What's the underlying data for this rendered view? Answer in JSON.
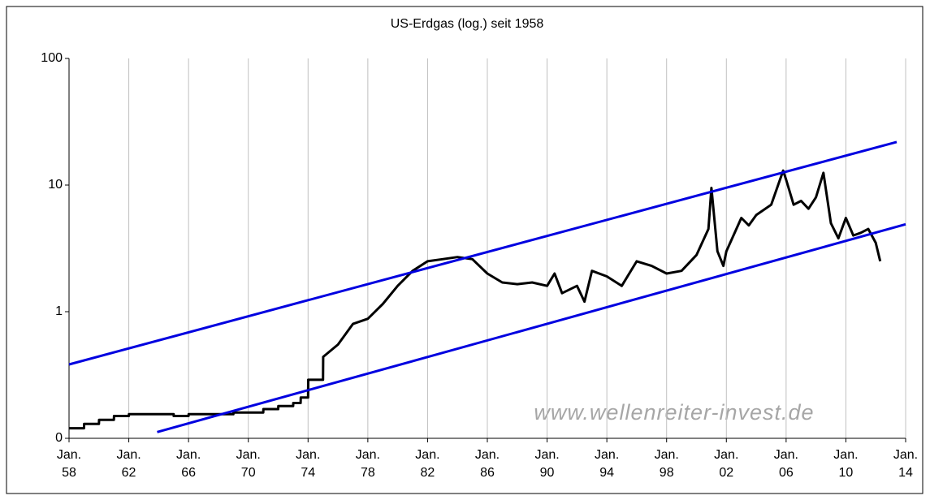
{
  "chart_data": {
    "type": "line",
    "title": "US-Erdgas (log.) seit 1958",
    "annotations": [
      "www.wellenreiter-invest.de"
    ],
    "yscale": "log",
    "grid": "x",
    "xlim": [
      1958,
      2014
    ],
    "xticks": [
      {
        "value": 1958,
        "label": "Jan. 58"
      },
      {
        "value": 1962,
        "label": "Jan. 62"
      },
      {
        "value": 1966,
        "label": "Jan. 66"
      },
      {
        "value": 1970,
        "label": "Jan. 70"
      },
      {
        "value": 1974,
        "label": "Jan. 74"
      },
      {
        "value": 1978,
        "label": "Jan. 78"
      },
      {
        "value": 1982,
        "label": "Jan. 82"
      },
      {
        "value": 1986,
        "label": "Jan. 86"
      },
      {
        "value": 1990,
        "label": "Jan. 90"
      },
      {
        "value": 1994,
        "label": "Jan. 94"
      },
      {
        "value": 1998,
        "label": "Jan. 98"
      },
      {
        "value": 2002,
        "label": "Jan. 02"
      },
      {
        "value": 2006,
        "label": "Jan. 06"
      },
      {
        "value": 2010,
        "label": "Jan. 10"
      },
      {
        "value": 2014,
        "label": "Jan. 14"
      }
    ],
    "ylim": [
      0.1,
      100
    ],
    "yticks": [
      {
        "value": 0.1,
        "label": "0"
      },
      1,
      10,
      100
    ],
    "series": [
      {
        "color": "#000000",
        "x": [
          1958,
          1959,
          1959.01,
          1960,
          1960.01,
          1961,
          1961.01,
          1962,
          1962.01,
          1965,
          1965.01,
          1966,
          1966.01,
          1969,
          1969.01,
          1971,
          1971.01,
          1972,
          1972.01,
          1973,
          1973.01,
          1973.5,
          1973.51,
          1974,
          1974.01,
          1975,
          1975.01,
          1976,
          1977,
          1978,
          1979,
          1980,
          1981,
          1982,
          1983,
          1984,
          1985,
          1986,
          1987,
          1988,
          1989,
          1990,
          1990.5,
          1991,
          1992,
          1992.5,
          1993,
          1994,
          1995,
          1996,
          1997,
          1998,
          1999,
          2000,
          2000.8,
          2001,
          2001.4,
          2001.8,
          2002,
          2003,
          2003.5,
          2004,
          2005,
          2005.8,
          2006,
          2006.5,
          2007,
          2007.5,
          2008,
          2008.5,
          2009,
          2009.5,
          2010,
          2010.5,
          2011,
          2011.5,
          2012,
          2012.3
        ],
        "values": [
          0.12,
          0.12,
          0.13,
          0.13,
          0.14,
          0.14,
          0.15,
          0.15,
          0.155,
          0.155,
          0.15,
          0.15,
          0.155,
          0.155,
          0.16,
          0.16,
          0.17,
          0.17,
          0.18,
          0.18,
          0.19,
          0.19,
          0.21,
          0.21,
          0.29,
          0.29,
          0.44,
          0.55,
          0.8,
          0.88,
          1.15,
          1.6,
          2.1,
          2.5,
          2.6,
          2.7,
          2.6,
          2.0,
          1.7,
          1.65,
          1.7,
          1.6,
          2.0,
          1.4,
          1.6,
          1.2,
          2.1,
          1.9,
          1.6,
          2.5,
          2.3,
          2.0,
          2.1,
          2.8,
          4.5,
          9.5,
          3.0,
          2.3,
          3.0,
          5.5,
          4.8,
          5.8,
          7.0,
          13.0,
          11,
          7,
          7.5,
          6.5,
          8,
          12.5,
          5,
          3.8,
          5.5,
          4,
          4.2,
          4.5,
          3.5,
          2.5
        ]
      },
      {
        "color": "#0000e0",
        "x": [
          1958,
          2013.4
        ],
        "values": [
          0.383,
          21.9
        ]
      },
      {
        "color": "#0000e0",
        "x": [
          1963.9,
          2014
        ],
        "values": [
          0.112,
          4.9
        ]
      }
    ]
  }
}
